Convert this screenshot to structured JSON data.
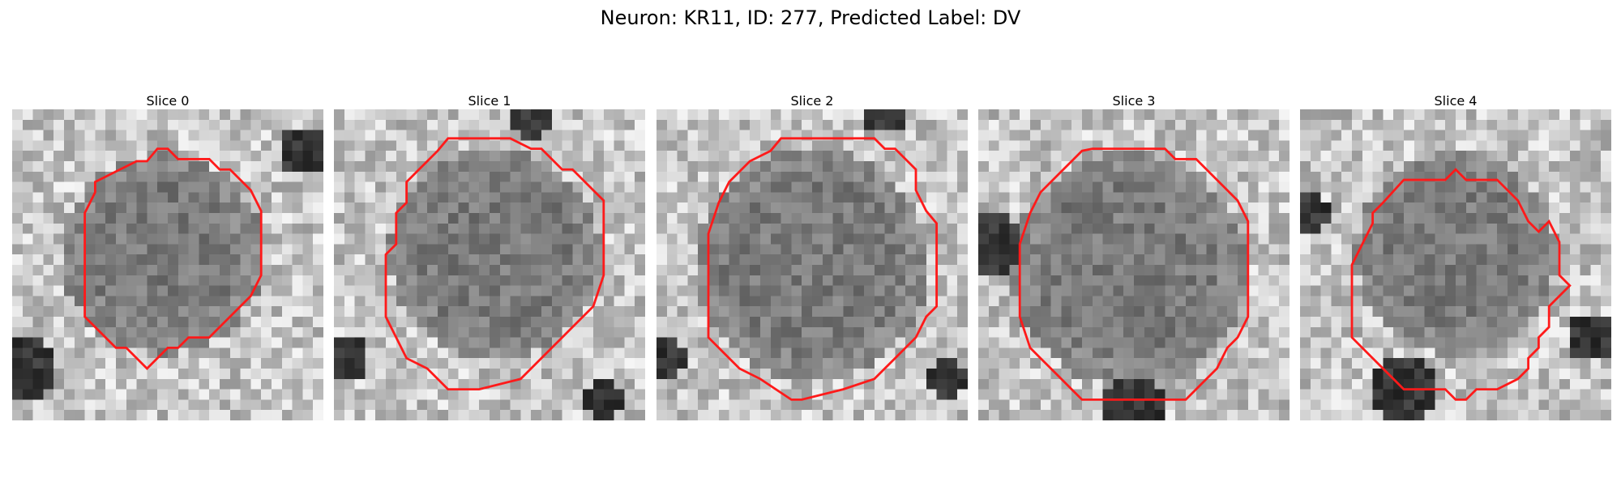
{
  "figure": {
    "title": "Neuron: KR11, ID: 277, Predicted Label: DV"
  },
  "panels": [
    {
      "title": "Slice 0"
    },
    {
      "title": "Slice 1"
    },
    {
      "title": "Slice 2"
    },
    {
      "title": "Slice 3"
    },
    {
      "title": "Slice 4"
    }
  ],
  "contour_color": "#ff1a1a"
}
